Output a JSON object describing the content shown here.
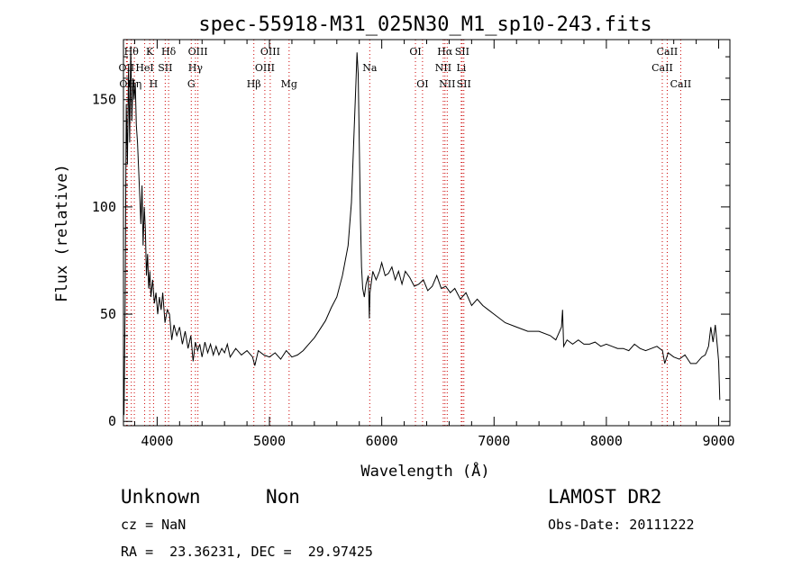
{
  "chart_data": {
    "type": "line",
    "title": "spec-55918-M31_025N30_M1_sp10-243.fits",
    "xlabel": "Wavelength (Å)",
    "ylabel": "Flux (relative)",
    "xlim": [
      3700,
      9100
    ],
    "ylim": [
      -2,
      178
    ],
    "x_ticks": [
      4000,
      5000,
      6000,
      7000,
      8000,
      9000
    ],
    "y_ticks": [
      0,
      50,
      100,
      150
    ],
    "grid": false,
    "line_color": "#000000",
    "marker_color": "#cc0000",
    "series": [
      {
        "x": [
          3705,
          3715,
          3725,
          3735,
          3745,
          3755,
          3765,
          3775,
          3785,
          3795,
          3805,
          3815,
          3825,
          3835,
          3845,
          3855,
          3865,
          3875,
          3885,
          3895,
          3905,
          3915,
          3925,
          3935,
          3945,
          3960,
          3975,
          3990,
          4005,
          4020,
          4035,
          4050,
          4070,
          4090,
          4110,
          4130,
          4150,
          4175,
          4200,
          4225,
          4250,
          4275,
          4300,
          4320,
          4340,
          4360,
          4380,
          4400,
          4425,
          4450,
          4475,
          4500,
          4525,
          4550,
          4575,
          4600,
          4625,
          4650,
          4700,
          4750,
          4800,
          4850,
          4870,
          4900,
          4950,
          5000,
          5050,
          5100,
          5150,
          5200,
          5250,
          5300,
          5350,
          5400,
          5450,
          5500,
          5550,
          5600,
          5650,
          5700,
          5730,
          5750,
          5770,
          5780,
          5790,
          5800,
          5810,
          5820,
          5830,
          5845,
          5860,
          5880,
          5890,
          5895,
          5900,
          5920,
          5950,
          5980,
          6000,
          6030,
          6060,
          6090,
          6120,
          6150,
          6180,
          6210,
          6250,
          6290,
          6330,
          6370,
          6410,
          6450,
          6490,
          6530,
          6570,
          6610,
          6650,
          6700,
          6750,
          6800,
          6850,
          6900,
          6950,
          7000,
          7100,
          7200,
          7300,
          7400,
          7500,
          7550,
          7600,
          7610,
          7620,
          7650,
          7700,
          7750,
          7800,
          7850,
          7900,
          7950,
          8000,
          8050,
          8100,
          8150,
          8200,
          8250,
          8300,
          8350,
          8400,
          8450,
          8500,
          8520,
          8550,
          8600,
          8650,
          8700,
          8750,
          8800,
          8850,
          8880,
          8910,
          8930,
          8950,
          8970,
          8990,
          9000,
          9010
        ],
        "y": [
          3,
          55,
          148,
          120,
          165,
          130,
          175,
          140,
          160,
          150,
          158,
          138,
          130,
          118,
          105,
          92,
          110,
          82,
          100,
          90,
          68,
          78,
          62,
          70,
          58,
          66,
          55,
          60,
          50,
          58,
          52,
          60,
          46,
          52,
          50,
          38,
          45,
          40,
          44,
          36,
          42,
          34,
          40,
          28,
          37,
          33,
          36,
          30,
          37,
          32,
          36,
          31,
          35,
          31,
          34,
          32,
          36,
          30,
          34,
          31,
          33,
          30,
          26,
          33,
          31,
          30,
          32,
          29,
          33,
          30,
          31,
          33,
          36,
          39,
          43,
          47,
          53,
          58,
          68,
          82,
          102,
          130,
          158,
          172,
          162,
          130,
          95,
          72,
          62,
          58,
          64,
          68,
          48,
          60,
          62,
          70,
          66,
          70,
          74,
          68,
          69,
          72,
          66,
          70,
          64,
          70,
          67,
          63,
          64,
          66,
          61,
          63,
          68,
          62,
          63,
          60,
          62,
          57,
          60,
          54,
          57,
          54,
          52,
          50,
          46,
          44,
          42,
          42,
          40,
          38,
          44,
          52,
          35,
          38,
          36,
          38,
          36,
          36,
          37,
          35,
          36,
          35,
          34,
          34,
          33,
          36,
          34,
          33,
          34,
          35,
          33,
          27,
          32,
          30,
          29,
          31,
          27,
          27,
          30,
          31,
          35,
          44,
          37,
          45,
          34,
          28,
          10
        ]
      }
    ],
    "lines": [
      {
        "x": 3727,
        "label": "OII",
        "row": 2
      },
      {
        "x": 3734,
        "label": "OII",
        "row": 3
      },
      {
        "x": 3770,
        "label": "Hθ",
        "row": 1
      },
      {
        "x": 3797,
        "label": "Hη",
        "row": 3
      },
      {
        "x": 3889,
        "label": "HeI",
        "row": 2
      },
      {
        "x": 3934,
        "label": "K",
        "row": 1
      },
      {
        "x": 3968,
        "label": "H",
        "row": 3
      },
      {
        "x": 4072,
        "label": "SII",
        "row": 2
      },
      {
        "x": 4102,
        "label": "Hδ",
        "row": 1
      },
      {
        "x": 4304,
        "label": "G",
        "row": 3
      },
      {
        "x": 4341,
        "label": "Hγ",
        "row": 2
      },
      {
        "x": 4363,
        "label": "OIII",
        "row": 1
      },
      {
        "x": 4861,
        "label": "Hβ",
        "row": 3
      },
      {
        "x": 4959,
        "label": "OIII",
        "row": 2
      },
      {
        "x": 5007,
        "label": "OIII",
        "row": 1
      },
      {
        "x": 5175,
        "label": "Mg",
        "row": 3
      },
      {
        "x": 5893,
        "label": "Na",
        "row": 2
      },
      {
        "x": 6300,
        "label": "OI",
        "row": 1
      },
      {
        "x": 6363,
        "label": "OI",
        "row": 3
      },
      {
        "x": 6548,
        "label": "NII",
        "row": 2
      },
      {
        "x": 6563,
        "label": "Hα",
        "row": 1
      },
      {
        "x": 6583,
        "label": "NII",
        "row": 3
      },
      {
        "x": 6708,
        "label": "Li",
        "row": 2
      },
      {
        "x": 6716,
        "label": "SII",
        "row": 1
      },
      {
        "x": 6731,
        "label": "SII",
        "row": 3
      },
      {
        "x": 8498,
        "label": "CaII",
        "row": 2
      },
      {
        "x": 8542,
        "label": "CaII",
        "row": 1
      },
      {
        "x": 8662,
        "label": "CaII",
        "row": 3
      }
    ]
  },
  "footer": {
    "class_label": "Unknown",
    "subclass_label": "Non",
    "survey": "LAMOST DR2",
    "cz": "cz = NaN",
    "obs_date": "Obs-Date: 20111222",
    "coords": "RA =  23.36231, DEC =  29.97425"
  }
}
